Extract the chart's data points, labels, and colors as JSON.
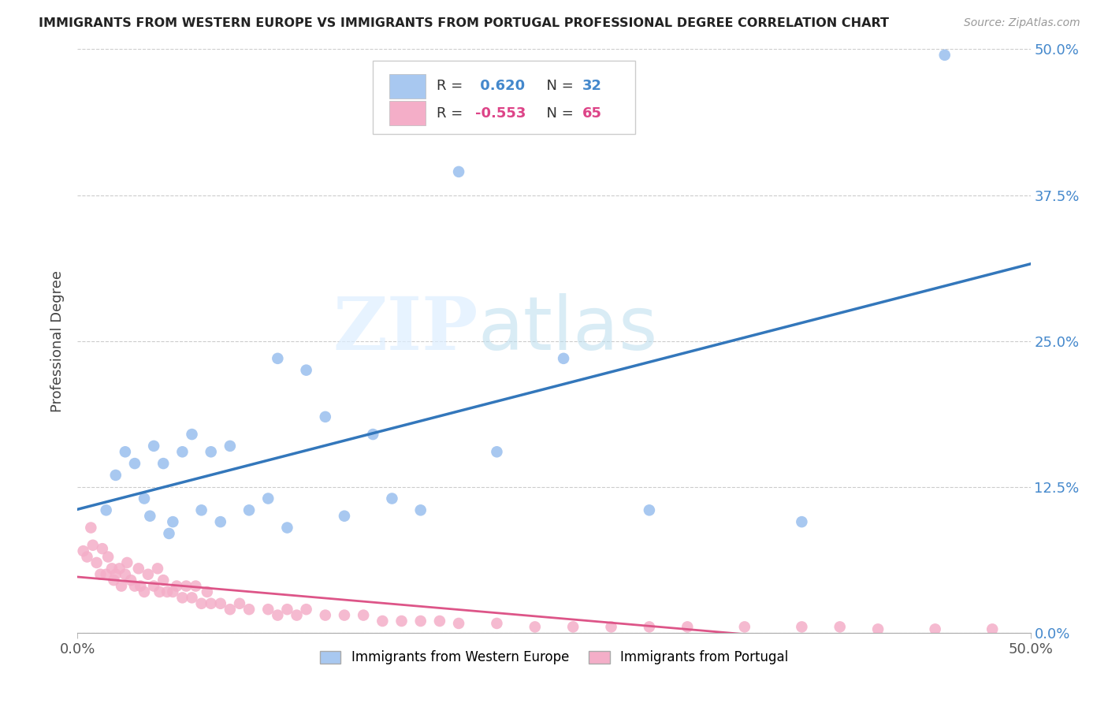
{
  "title": "IMMIGRANTS FROM WESTERN EUROPE VS IMMIGRANTS FROM PORTUGAL PROFESSIONAL DEGREE CORRELATION CHART",
  "source": "Source: ZipAtlas.com",
  "ylabel": "Professional Degree",
  "xmin": 0.0,
  "xmax": 0.5,
  "ymin": 0.0,
  "ymax": 0.5,
  "ytick_positions": [
    0.0,
    0.125,
    0.25,
    0.375,
    0.5
  ],
  "ytick_labels_right": [
    "0.0%",
    "12.5%",
    "25.0%",
    "37.5%",
    "50.0%"
  ],
  "xtick_positions": [
    0.0,
    0.5
  ],
  "xtick_labels": [
    "0.0%",
    "50.0%"
  ],
  "grid_yticks": [
    0.0,
    0.125,
    0.25,
    0.375,
    0.5
  ],
  "blue_R": 0.62,
  "blue_N": 32,
  "pink_R": -0.553,
  "pink_N": 65,
  "blue_color": "#a8c8f0",
  "pink_color": "#f4aec8",
  "blue_line_color": "#3377bb",
  "pink_line_color": "#dd5588",
  "blue_legend_color": "#4488cc",
  "pink_legend_color": "#dd4488",
  "watermark_zip": "ZIP",
  "watermark_atlas": "atlas",
  "legend_labels": [
    "Immigrants from Western Europe",
    "Immigrants from Portugal"
  ],
  "blue_points_x": [
    0.015,
    0.02,
    0.025,
    0.03,
    0.035,
    0.038,
    0.04,
    0.045,
    0.048,
    0.05,
    0.055,
    0.06,
    0.065,
    0.07,
    0.075,
    0.08,
    0.09,
    0.1,
    0.105,
    0.11,
    0.12,
    0.13,
    0.14,
    0.155,
    0.165,
    0.18,
    0.2,
    0.22,
    0.255,
    0.3,
    0.38,
    0.455
  ],
  "blue_points_y": [
    0.105,
    0.135,
    0.155,
    0.145,
    0.115,
    0.1,
    0.16,
    0.145,
    0.085,
    0.095,
    0.155,
    0.17,
    0.105,
    0.155,
    0.095,
    0.16,
    0.105,
    0.115,
    0.235,
    0.09,
    0.225,
    0.185,
    0.1,
    0.17,
    0.115,
    0.105,
    0.395,
    0.155,
    0.235,
    0.105,
    0.095,
    0.495
  ],
  "pink_points_x": [
    0.003,
    0.005,
    0.007,
    0.008,
    0.01,
    0.012,
    0.013,
    0.015,
    0.016,
    0.018,
    0.019,
    0.02,
    0.022,
    0.023,
    0.025,
    0.026,
    0.028,
    0.03,
    0.032,
    0.033,
    0.035,
    0.037,
    0.04,
    0.042,
    0.043,
    0.045,
    0.047,
    0.05,
    0.052,
    0.055,
    0.057,
    0.06,
    0.062,
    0.065,
    0.068,
    0.07,
    0.075,
    0.08,
    0.085,
    0.09,
    0.1,
    0.105,
    0.11,
    0.115,
    0.12,
    0.13,
    0.14,
    0.15,
    0.16,
    0.17,
    0.18,
    0.19,
    0.2,
    0.22,
    0.24,
    0.26,
    0.28,
    0.3,
    0.32,
    0.35,
    0.38,
    0.4,
    0.42,
    0.45,
    0.48
  ],
  "pink_points_y": [
    0.07,
    0.065,
    0.09,
    0.075,
    0.06,
    0.05,
    0.072,
    0.05,
    0.065,
    0.055,
    0.045,
    0.05,
    0.055,
    0.04,
    0.05,
    0.06,
    0.045,
    0.04,
    0.055,
    0.04,
    0.035,
    0.05,
    0.04,
    0.055,
    0.035,
    0.045,
    0.035,
    0.035,
    0.04,
    0.03,
    0.04,
    0.03,
    0.04,
    0.025,
    0.035,
    0.025,
    0.025,
    0.02,
    0.025,
    0.02,
    0.02,
    0.015,
    0.02,
    0.015,
    0.02,
    0.015,
    0.015,
    0.015,
    0.01,
    0.01,
    0.01,
    0.01,
    0.008,
    0.008,
    0.005,
    0.005,
    0.005,
    0.005,
    0.005,
    0.005,
    0.005,
    0.005,
    0.003,
    0.003,
    0.003
  ]
}
